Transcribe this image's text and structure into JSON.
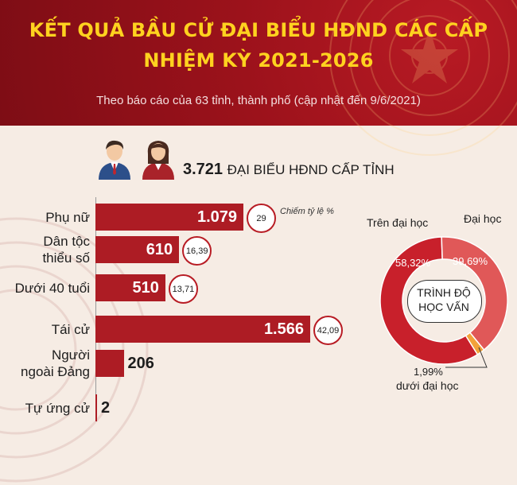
{
  "header": {
    "title_line1": "KẾT QUẢ BẦU CỬ ĐẠI BIỂU HĐND CÁC CẤP",
    "title_line2": "NHIỆM KỲ 2021-2026",
    "subtitle": "Theo báo cáo của 63 tỉnh, thành phố (cập nhật đến 9/6/2021)"
  },
  "summary": {
    "total_value": "3.721",
    "total_label": "ĐẠI BIỂU HĐND CẤP TỈNH",
    "note": "Chiếm tỷ lệ %"
  },
  "colors": {
    "bar": "#ad1c24",
    "header": "#9c121b",
    "title": "#ffd21f",
    "donut_main": "#c8202b",
    "donut_light": "#e05858",
    "donut_small": "#f2a23a"
  },
  "chart_data": [
    {
      "type": "bar",
      "orientation": "horizontal",
      "categories": [
        "Phụ nữ",
        "Dân tộc thiểu số",
        "Dưới 40 tuổi",
        "Tái cử",
        "Người ngoài Đảng",
        "Tự ứng cử"
      ],
      "category_lines": [
        [
          "Phụ nữ"
        ],
        [
          "Dân tộc",
          "thiểu số"
        ],
        [
          "Dưới 40 tuổi"
        ],
        [
          "Tái cử"
        ],
        [
          "Người",
          "ngoài Đảng"
        ],
        [
          "Tự ứng cử"
        ]
      ],
      "values": [
        1079,
        610,
        510,
        1566,
        206,
        2
      ],
      "value_labels": [
        "1.079",
        "610",
        "510",
        "1.566",
        "206",
        "2"
      ],
      "percent_labels": [
        "29",
        "16,39",
        "13,71",
        "42,09",
        "",
        ""
      ],
      "xlim": [
        0,
        1566
      ]
    },
    {
      "type": "pie",
      "donut": true,
      "center_label": [
        "TRÌNH ĐỘ",
        "HỌC VẤN"
      ],
      "slices": [
        {
          "label": "Trên đại học",
          "value": 58.32,
          "value_label": "58,32%"
        },
        {
          "label": "Đại học",
          "value": 39.69,
          "value_label": "39,69%"
        },
        {
          "label": "dưới đại học",
          "value": 1.99,
          "value_label": "1,99%"
        }
      ]
    }
  ]
}
